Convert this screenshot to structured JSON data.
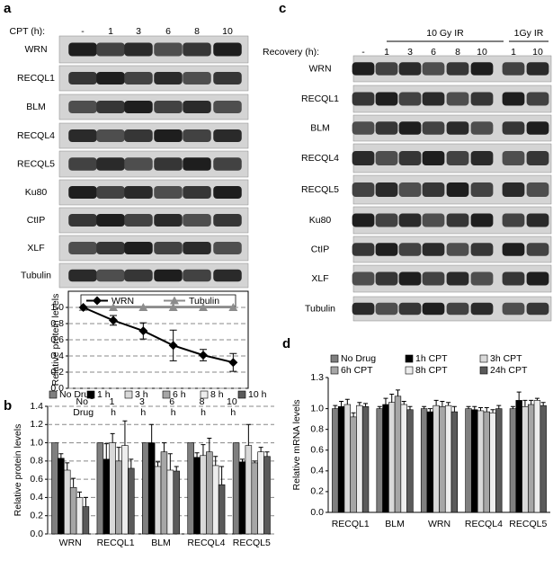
{
  "panel_labels": [
    "a",
    "b",
    "c",
    "d"
  ],
  "blot_a": {
    "header_label": "CPT (h):",
    "lanes": [
      "-",
      "1",
      "3",
      "6",
      "8",
      "10"
    ],
    "proteins": [
      "WRN",
      "RECQL1",
      "BLM",
      "RECQL4",
      "RECQL5",
      "Ku80",
      "CtIP",
      "XLF",
      "Tubulin"
    ]
  },
  "blot_c": {
    "header_label": "Recovery (h):",
    "groups": [
      "10 Gy IR",
      "1Gy IR"
    ],
    "lanes": [
      "-",
      "1",
      "3",
      "6",
      "8",
      "10",
      "1",
      "10"
    ],
    "proteins": [
      "WRN",
      "RECQL1",
      "BLM",
      "RECQL4",
      "RECQL5",
      "Ku80",
      "CtIP",
      "XLF",
      "Tubulin"
    ]
  },
  "chart_data": [
    {
      "type": "line",
      "ylabel": "Relative protein levels",
      "categories": [
        "No Drug",
        "1 h",
        "3 h",
        "6 h",
        "8 h",
        "10 h"
      ],
      "series": [
        {
          "name": "WRN",
          "color": "#000000",
          "marker": "diamond",
          "values": [
            1.0,
            0.84,
            0.71,
            0.53,
            0.41,
            0.32
          ],
          "errors": [
            0,
            0.06,
            0.1,
            0.19,
            0.07,
            0.11
          ]
        },
        {
          "name": "Tubulin",
          "color": "#8c8c8c",
          "marker": "triangle",
          "values": [
            1.0,
            1.0,
            1.0,
            1.0,
            1.0,
            1.0
          ]
        }
      ],
      "ylim": [
        0,
        1.2
      ],
      "yticks": [
        {
          "value": 0,
          "label": "0.0"
        },
        {
          "value": 0.2,
          "label": "0.2"
        },
        {
          "value": 0.4,
          "label": "0.4"
        },
        {
          "value": 0.6,
          "label": "0.6"
        },
        {
          "value": 0.8,
          "label": "0.8"
        },
        {
          "value": 1.0,
          "label": "1.0"
        }
      ],
      "grid": true
    },
    {
      "type": "bar",
      "ylabel": "Relative protein  levels",
      "categories": [
        "WRN",
        "RECQL1",
        "BLM",
        "RECQL4",
        "RECQL5"
      ],
      "series": [
        {
          "name": "No Drug",
          "color": "#7f7f7f",
          "values": [
            1.0,
            1.0,
            1.0,
            1.0,
            1.0
          ],
          "errors": [
            0,
            0,
            0,
            0,
            0
          ]
        },
        {
          "name": "1 h",
          "color": "#000000",
          "values": [
            0.83,
            0.82,
            1.0,
            0.84,
            0.79
          ],
          "errors": [
            0.05,
            0.17,
            0.2,
            0.05,
            0.03
          ]
        },
        {
          "name": "3 h",
          "color": "#d9d9d9",
          "values": [
            0.7,
            1.0,
            0.74,
            0.86,
            0.97
          ],
          "errors": [
            0.08,
            0.1,
            0.05,
            0.12,
            0.23
          ]
        },
        {
          "name": "6 h",
          "color": "#a6a6a6",
          "values": [
            0.51,
            0.8,
            0.9,
            0.9,
            0.78
          ],
          "errors": [
            0.1,
            0.15,
            0.1,
            0.15,
            0.02
          ]
        },
        {
          "name": "8 h",
          "color": "#ededed",
          "values": [
            0.4,
            0.97,
            0.7,
            0.75,
            0.9
          ],
          "errors": [
            0.06,
            0.27,
            0.18,
            0.1,
            0.05
          ]
        },
        {
          "name": "10 h",
          "color": "#5a5a5a",
          "values": [
            0.3,
            0.72,
            0.69,
            0.54,
            0.85
          ],
          "errors": [
            0.1,
            0.1,
            0.05,
            0.2,
            0.05
          ]
        }
      ],
      "ylim": [
        0,
        1.4
      ],
      "yticks": [
        {
          "value": 0,
          "label": "0.0"
        },
        {
          "value": 0.2,
          "label": "0.2"
        },
        {
          "value": 0.4,
          "label": "0.4"
        },
        {
          "value": 0.6,
          "label": "0.6"
        },
        {
          "value": 0.8,
          "label": "0.8"
        },
        {
          "value": 1.0,
          "label": "1.0"
        },
        {
          "value": 1.2,
          "label": "1.2"
        },
        {
          "value": 1.4,
          "label": "1.4"
        }
      ],
      "grid": true
    },
    {
      "type": "bar",
      "ylabel": "Relative mRNA levels",
      "categories": [
        "RECQL1",
        "BLM",
        "WRN",
        "RECQL4",
        "RECQL5"
      ],
      "series": [
        {
          "name": "No Drug",
          "color": "#7f7f7f",
          "values": [
            1.0,
            1.0,
            1.0,
            1.0,
            1.0
          ],
          "errors": [
            0.03,
            0.02,
            0.02,
            0.02,
            0.02
          ]
        },
        {
          "name": "1h CPT",
          "color": "#000000",
          "values": [
            1.02,
            1.04,
            0.97,
            0.99,
            1.08
          ],
          "errors": [
            0.05,
            0.06,
            0.03,
            0.03,
            0.08
          ]
        },
        {
          "name": "3h CPT",
          "color": "#d9d9d9",
          "values": [
            1.04,
            1.06,
            1.03,
            0.98,
            1.02
          ],
          "errors": [
            0.05,
            0.08,
            0.05,
            0.03,
            0.06
          ]
        },
        {
          "name": "6h CPT",
          "color": "#a6a6a6",
          "values": [
            0.92,
            1.12,
            1.02,
            0.97,
            1.04
          ],
          "errors": [
            0.04,
            0.06,
            0.05,
            0.04,
            0.04
          ]
        },
        {
          "name": "8h CPT",
          "color": "#ededed",
          "values": [
            1.03,
            1.04,
            1.03,
            0.96,
            1.08
          ],
          "errors": [
            0.03,
            0.03,
            0.03,
            0.03,
            0.02
          ]
        },
        {
          "name": "24h CPT",
          "color": "#5a5a5a",
          "values": [
            1.02,
            0.99,
            0.97,
            1.0,
            1.03
          ],
          "errors": [
            0.03,
            0.03,
            0.05,
            0.03,
            0.03
          ]
        }
      ],
      "ylim": [
        0,
        1.3
      ],
      "yticks": [
        {
          "value": 0,
          "label": "0.0"
        },
        {
          "value": 0.2,
          "label": "0.2"
        },
        {
          "value": 0.4,
          "label": "0.4"
        },
        {
          "value": 0.6,
          "label": "0.6"
        },
        {
          "value": 0.8,
          "label": "0.8"
        },
        {
          "value": 1.0,
          "label": "1.0"
        },
        {
          "value": 1.3,
          "label": "1.3"
        }
      ],
      "grid": false
    }
  ]
}
